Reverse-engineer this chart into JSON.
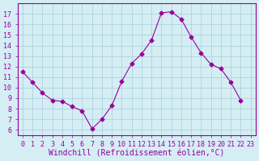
{
  "x": [
    0,
    1,
    2,
    3,
    4,
    5,
    6,
    7,
    8,
    9,
    10,
    11,
    12,
    13,
    14,
    15,
    16,
    17,
    18,
    19,
    20,
    21,
    22
  ],
  "y": [
    11.5,
    10.5,
    9.5,
    8.8,
    8.7,
    8.2,
    7.8,
    6.1,
    7.0,
    8.3,
    10.6,
    12.3,
    13.2,
    14.5,
    17.1,
    17.2,
    16.5,
    14.8,
    13.3,
    12.2,
    11.8,
    10.5,
    8.8
  ],
  "line_color": "#990099",
  "marker": "D",
  "marker_size": 2.5,
  "background_color": "#d4eef4",
  "grid_color": "#aaccdd",
  "xlabel": "Windchill (Refroidissement éolien,°C)",
  "xlabel_color": "#990099",
  "xlabel_fontsize": 7,
  "tick_color": "#990099",
  "tick_fontsize": 6,
  "ylim": [
    5.5,
    18
  ],
  "yticks": [
    6,
    7,
    8,
    9,
    10,
    11,
    12,
    13,
    14,
    15,
    16,
    17
  ],
  "xlim": [
    -0.5,
    23.5
  ],
  "xticks": [
    0,
    1,
    2,
    3,
    4,
    5,
    6,
    7,
    8,
    9,
    10,
    11,
    12,
    13,
    14,
    15,
    16,
    17,
    18,
    19,
    20,
    21,
    22,
    23
  ],
  "xtick_labels": [
    "0",
    "1",
    "2",
    "3",
    "4",
    "5",
    "6",
    "7",
    "8",
    "9",
    "10",
    "11",
    "12",
    "13",
    "14",
    "15",
    "16",
    "17",
    "18",
    "19",
    "20",
    "21",
    "22",
    "23"
  ],
  "spine_color": "#990099"
}
